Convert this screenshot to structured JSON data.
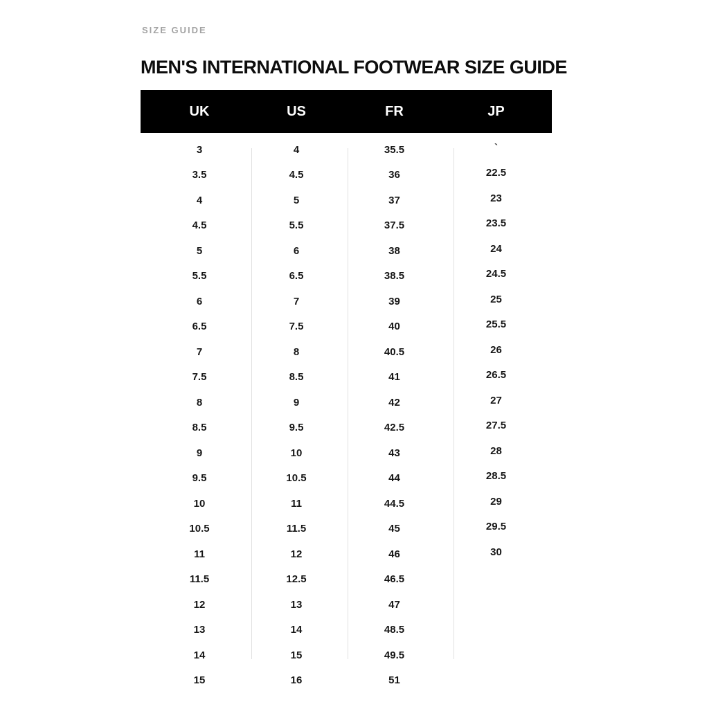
{
  "page": {
    "eyebrow": "SIZE GUIDE"
  },
  "chart_data": {
    "type": "table",
    "title": "MEN'S INTERNATIONAL FOOTWEAR SIZE GUIDE",
    "columns": [
      "UK",
      "US",
      "FR",
      "JP"
    ],
    "rows": [
      [
        "3",
        "4",
        "35.5",
        "`"
      ],
      [
        "3.5",
        "4.5",
        "36",
        "22.5"
      ],
      [
        "4",
        "5",
        "37",
        "23"
      ],
      [
        "4.5",
        "5.5",
        "37.5",
        "23.5"
      ],
      [
        "5",
        "6",
        "38",
        "24"
      ],
      [
        "5.5",
        "6.5",
        "38.5",
        "24.5"
      ],
      [
        "6",
        "7",
        "39",
        "25"
      ],
      [
        "6.5",
        "7.5",
        "40",
        "25.5"
      ],
      [
        "7",
        "8",
        "40.5",
        "26"
      ],
      [
        "7.5",
        "8.5",
        "41",
        "26.5"
      ],
      [
        "8",
        "9",
        "42",
        "27"
      ],
      [
        "8.5",
        "9.5",
        "42.5",
        "27.5"
      ],
      [
        "9",
        "10",
        "43",
        "28"
      ],
      [
        "9.5",
        "10.5",
        "44",
        "28.5"
      ],
      [
        "10",
        "11",
        "44.5",
        "29"
      ],
      [
        "10.5",
        "11.5",
        "45",
        "29.5"
      ],
      [
        "11",
        "12",
        "46",
        "30"
      ],
      [
        "11.5",
        "12.5",
        "46.5",
        ""
      ],
      [
        "12",
        "13",
        "47",
        ""
      ],
      [
        "13",
        "14",
        "48.5",
        ""
      ],
      [
        "14",
        "15",
        "49.5",
        ""
      ],
      [
        "15",
        "16",
        "51",
        ""
      ]
    ]
  },
  "colors": {
    "header_bg": "#000000",
    "header_text": "#ffffff",
    "eyebrow_text": "#a3a3a3",
    "body_text": "#161616",
    "divider": "#e0e0e0",
    "background": "#ffffff"
  }
}
